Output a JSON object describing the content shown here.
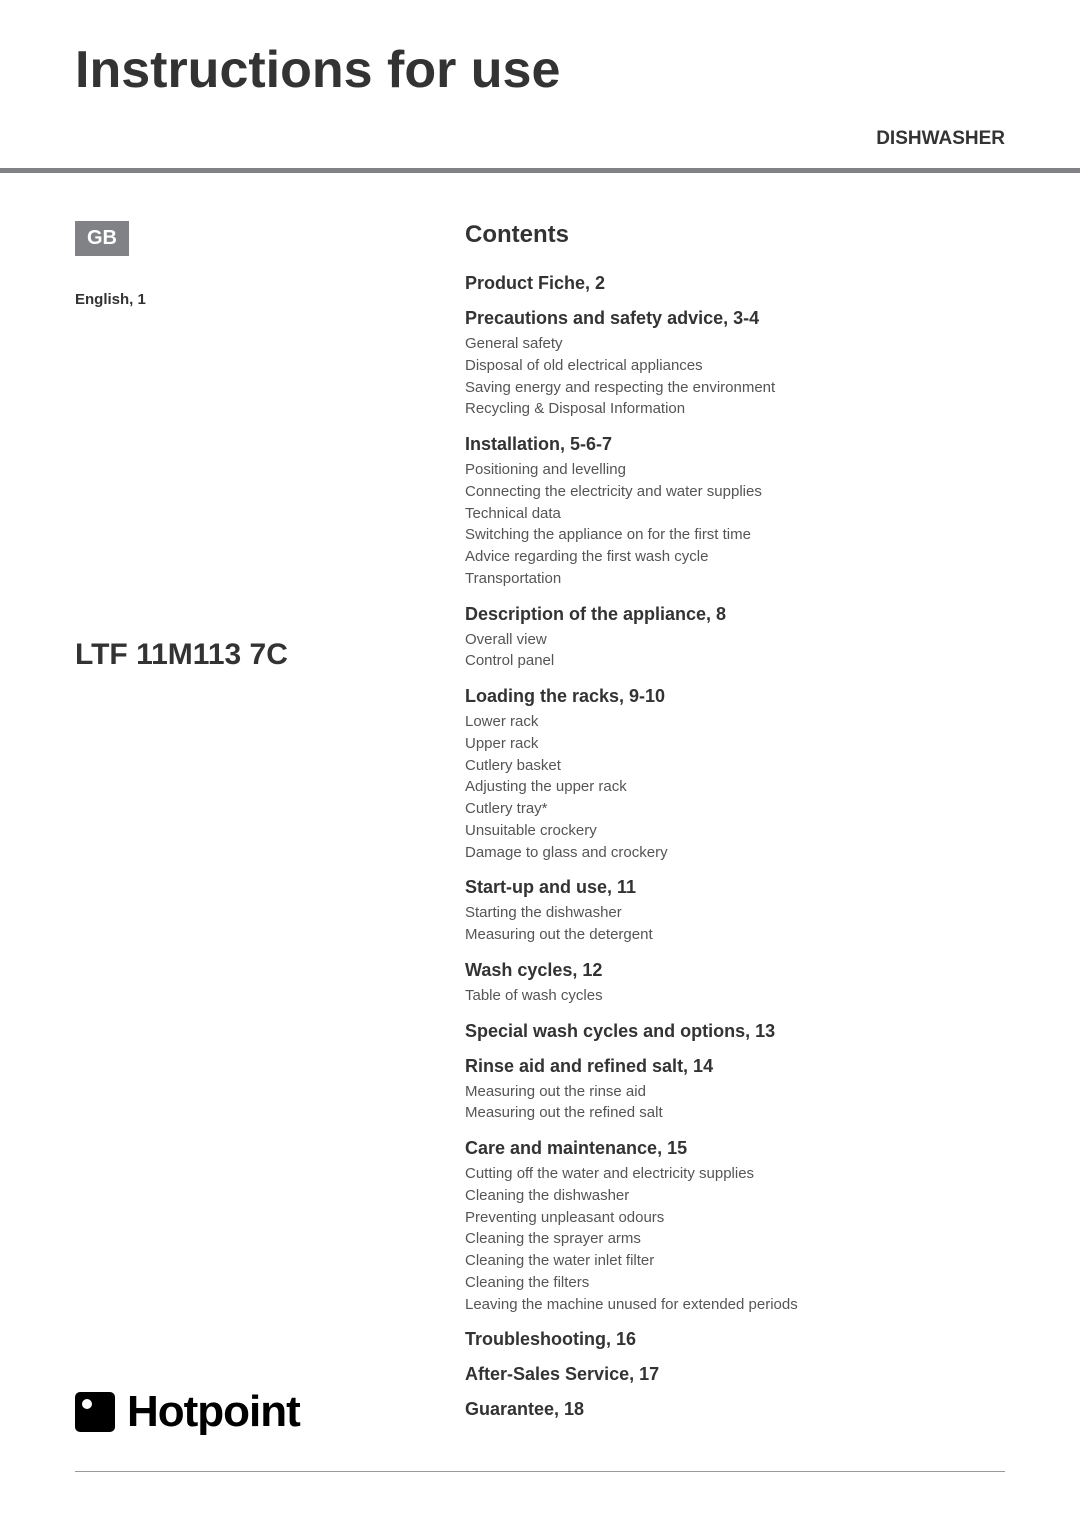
{
  "title": "Instructions for use",
  "subtitle": "DISHWASHER",
  "left": {
    "badge": "GB",
    "language": "English, 1",
    "model": "LTF 11M113 7C",
    "brand": "Hotpoint"
  },
  "contents": {
    "heading": "Contents",
    "sections": [
      {
        "title": "Product Fiche, 2",
        "items": []
      },
      {
        "title": "Precautions and safety advice, 3-4",
        "items": [
          "General safety",
          "Disposal of old electrical appliances",
          "Saving energy and respecting the environment",
          "Recycling & Disposal Information"
        ]
      },
      {
        "title": "Installation, 5-6-7",
        "items": [
          "Positioning and levelling",
          "Connecting the electricity and water supplies",
          "Technical data",
          "Switching the appliance on for the first time",
          "Advice regarding the first wash cycle",
          "Transportation"
        ]
      },
      {
        "title": "Description of the appliance, 8",
        "items": [
          "Overall view",
          "Control panel"
        ]
      },
      {
        "title": "Loading the racks, 9-10",
        "items": [
          "Lower rack",
          "Upper rack",
          "Cutlery basket",
          "Adjusting the upper rack",
          "Cutlery tray*",
          "Unsuitable crockery",
          "Damage to glass and crockery"
        ]
      },
      {
        "title": "Start-up and use, 11",
        "items": [
          "Starting the dishwasher",
          "Measuring out the detergent"
        ]
      },
      {
        "title": "Wash cycles, 12",
        "items": [
          "Table of wash cycles"
        ]
      },
      {
        "title": "Special wash cycles and options, 13",
        "items": []
      },
      {
        "title": "Rinse aid and refined salt, 14",
        "items": [
          "Measuring out the rinse aid",
          "Measuring out the refined salt"
        ]
      },
      {
        "title": "Care and maintenance, 15",
        "items": [
          "Cutting off the water and electricity supplies",
          "Cleaning the dishwasher",
          "Preventing unpleasant odours",
          "Cleaning the sprayer arms",
          "Cleaning the water inlet filter",
          "Cleaning the filters",
          "Leaving the machine unused for extended periods"
        ]
      },
      {
        "title": "Troubleshooting, 16",
        "items": []
      },
      {
        "title": "After-Sales Service, 17",
        "items": []
      },
      {
        "title": "Guarantee, 18",
        "items": []
      }
    ]
  }
}
